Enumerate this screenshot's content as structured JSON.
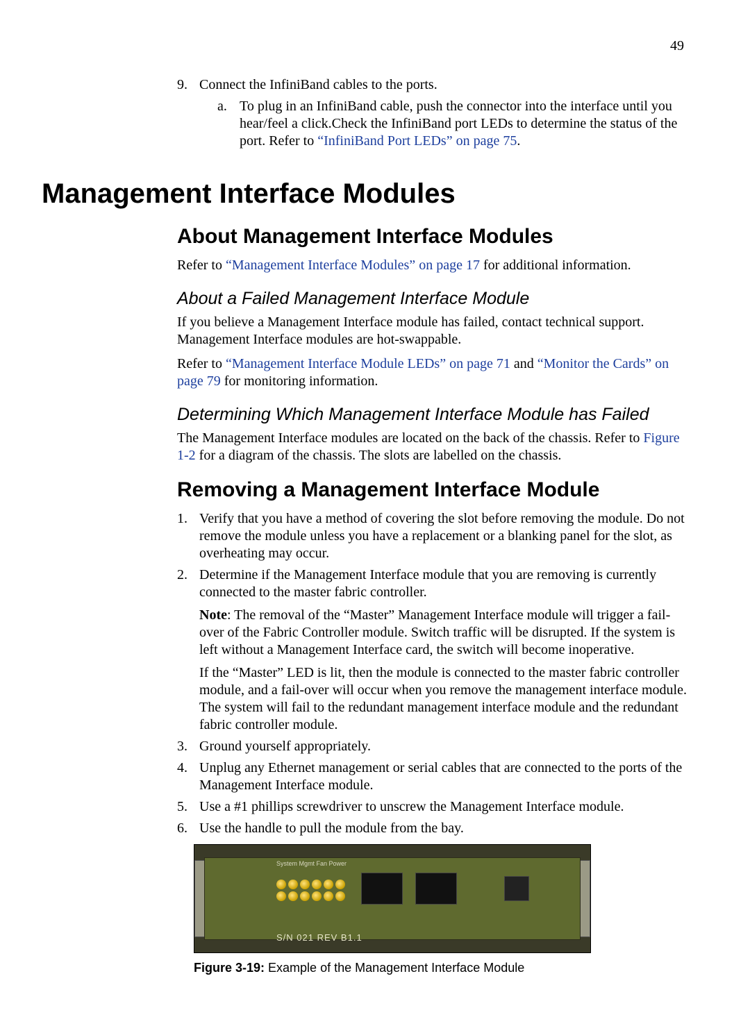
{
  "page_number": "49",
  "top_list": {
    "num_marker": "9.",
    "num_text": "Connect the InfiniBand cables to the ports.",
    "alpha_marker": "a.",
    "alpha_text_part1": "To plug in an InfiniBand cable, push the connector into the interface until you hear/feel a click.Check the InfiniBand port LEDs to determine the status of the port. Refer to ",
    "alpha_link": "“InfiniBand Port LEDs” on page 75",
    "alpha_text_part2": "."
  },
  "h1": "Management Interface Modules",
  "h2_about": "About Management Interface Modules",
  "about_para_pre": "Refer to ",
  "about_para_link": "“Management Interface Modules” on page 17",
  "about_para_post": " for additional information.",
  "h3_failed": "About a Failed Management Interface Module",
  "failed_p1": "If you believe a Management Interface module has failed, contact technical support. Management Interface modules are hot-swappable.",
  "failed_p2_pre": "Refer to ",
  "failed_p2_link1": "“Management Interface Module LEDs” on page 71",
  "failed_p2_mid": " and ",
  "failed_p2_link2": "“Monitor the Cards” on page 79",
  "failed_p2_post": " for monitoring information.",
  "h3_determine": "Determining Which Management Interface Module has Failed",
  "determine_p_pre": "The Management Interface modules are located on the back of the chassis. Refer to ",
  "determine_p_link": "Figure 1-2",
  "determine_p_post": " for a diagram of the chassis. The slots are labelled on the chassis.",
  "h2_removing": "Removing a Management Interface Module",
  "steps": {
    "m1": "1.",
    "t1": "Verify that you have a method of covering the slot before removing the module. Do not remove the module unless you have a replacement or a blanking panel for the slot, as overheating may occur.",
    "m2": "2.",
    "t2a": "Determine if the Management Interface module that you are removing is currently connected to the master fabric controller.",
    "t2b_bold": "Note",
    "t2b_rest": ": The removal of the “Master” Management Interface module will trigger a fail-over of the Fabric Controller module. Switch traffic will be disrupted. If the system is left without a Management Interface card, the switch will become inoperative.",
    "t2c": "If the “Master” LED is lit, then the module is connected to the master fabric controller module, and a fail-over will occur when you remove the management interface module. The system will fail to the redundant management interface module and the redundant fabric controller module.",
    "m3": "3.",
    "t3": "Ground yourself appropriately.",
    "m4": "4.",
    "t4": "Unplug any Ethernet management or serial cables that are connected to the ports of the Management Interface module.",
    "m5": "5.",
    "t5": "Use a #1 phillips screwdriver to unscrew the Management Interface module.",
    "m6": "6.",
    "t6": "Use the handle to pull the module from the bay."
  },
  "figure": {
    "sn_label": "S/N 021 REV B1.1",
    "top_label": "System  Mgmt  Fan   Power",
    "caption_bold": "Figure 3-19:",
    "caption_rest": " Example of the Management Interface Module"
  },
  "colors": {
    "link": "#1d3f9e",
    "text": "#000000",
    "background": "#ffffff"
  }
}
